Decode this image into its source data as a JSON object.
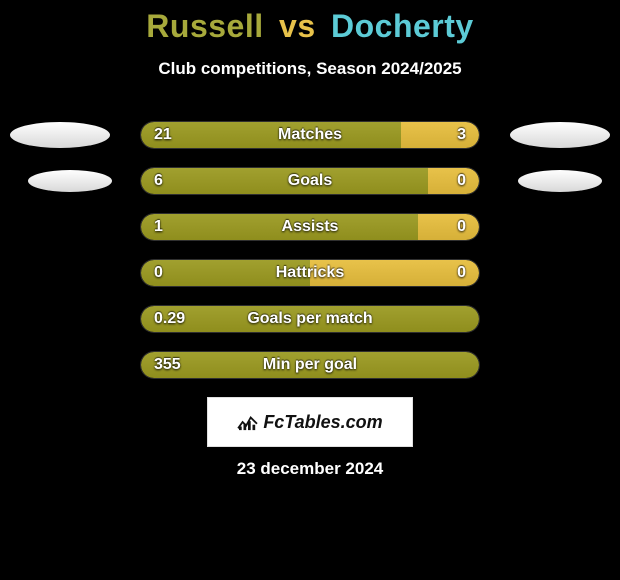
{
  "title": {
    "player1": "Russell",
    "vs": "vs",
    "player2": "Docherty",
    "color1": "#a7a93b",
    "color_vs": "#e8c24a",
    "color2": "#5ccbd6"
  },
  "subtitle": "Club competitions, Season 2024/2025",
  "colors": {
    "bar_left": "#a1a02f",
    "bar_right": "#e8c24a",
    "track": "#0b0b0b"
  },
  "stats": [
    {
      "label": "Matches",
      "left_val": "21",
      "right_val": "3",
      "left_pct": 77,
      "right_pct": 23,
      "flank": 1
    },
    {
      "label": "Goals",
      "left_val": "6",
      "right_val": "0",
      "left_pct": 85,
      "right_pct": 15,
      "flank": 2
    },
    {
      "label": "Assists",
      "left_val": "1",
      "right_val": "0",
      "left_pct": 82,
      "right_pct": 18,
      "flank": 0
    },
    {
      "label": "Hattricks",
      "left_val": "0",
      "right_val": "0",
      "left_pct": 50,
      "right_pct": 50,
      "flank": 0
    },
    {
      "label": "Goals per match",
      "left_val": "0.29",
      "right_val": "",
      "left_pct": 100,
      "right_pct": 0,
      "flank": 0
    },
    {
      "label": "Min per goal",
      "left_val": "355",
      "right_val": "",
      "left_pct": 100,
      "right_pct": 0,
      "flank": 0
    }
  ],
  "logo": {
    "text": "FcTables.com"
  },
  "date": "23 december 2024"
}
